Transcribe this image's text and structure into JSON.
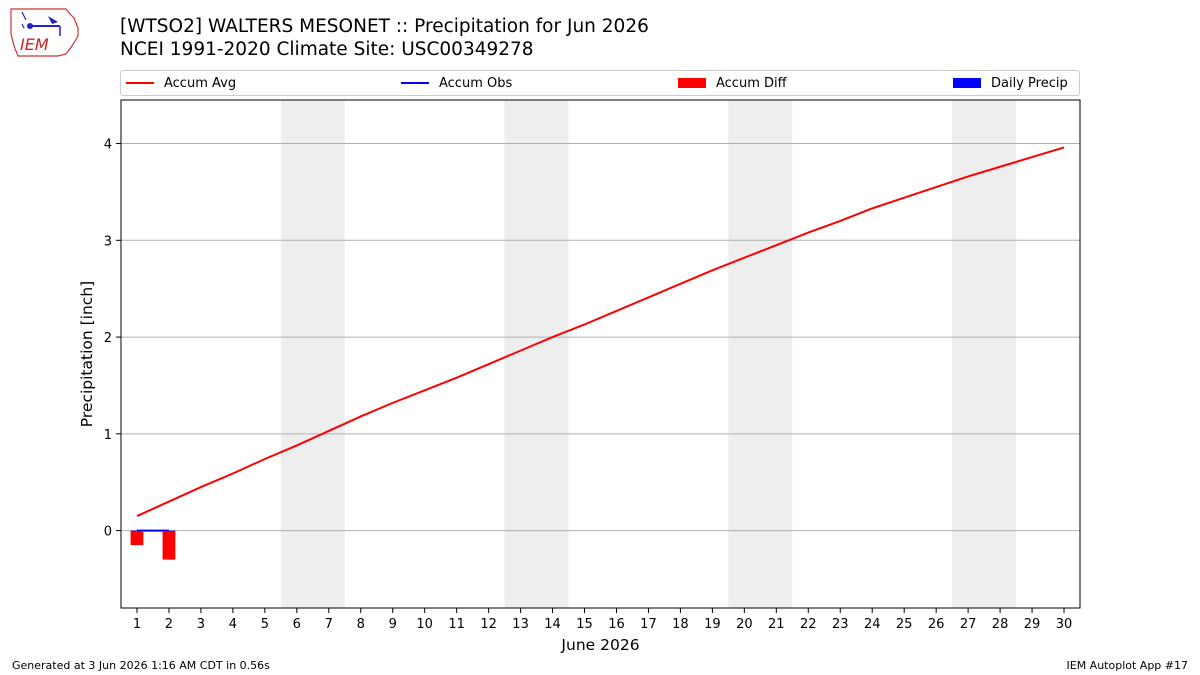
{
  "title_line1": "[WTSO2] WALTERS MESONET :: Precipitation for Jun 2026",
  "title_line2": "NCEI 1991-2020 Climate Site: USC00349278",
  "logo_text": "IEM",
  "footer_left": "Generated at 3 Jun 2026 1:16 AM CDT in 0.56s",
  "footer_right": "IEM Autoplot App #17",
  "colors": {
    "accum_avg": "#ff0000",
    "accum_obs": "#0000ff",
    "accum_diff": "#ff0000",
    "daily_precip": "#0000ff",
    "weekend_shade": "#eeeeee",
    "grid": "#b0b0b0"
  },
  "chart_data": {
    "type": "line",
    "xlabel": "June 2026",
    "ylabel": "Precipitation [inch]",
    "xlim": [
      0.5,
      30.5
    ],
    "ylim": [
      -0.8,
      4.45
    ],
    "yticks": [
      0,
      1,
      2,
      3,
      4
    ],
    "grid": "horizontal",
    "legend_position": "top",
    "legend": [
      "Accum Avg",
      "Accum Obs",
      "Accum Diff",
      "Daily Precip"
    ],
    "x": [
      1,
      2,
      3,
      4,
      5,
      6,
      7,
      8,
      9,
      10,
      11,
      12,
      13,
      14,
      15,
      16,
      17,
      18,
      19,
      20,
      21,
      22,
      23,
      24,
      25,
      26,
      27,
      28,
      29,
      30
    ],
    "weekend_spans": [
      [
        6,
        7
      ],
      [
        13,
        14
      ],
      [
        20,
        21
      ],
      [
        27,
        28
      ]
    ],
    "series": [
      {
        "name": "Accum Avg",
        "kind": "line",
        "values": [
          0.15,
          0.3,
          0.45,
          0.59,
          0.74,
          0.88,
          1.03,
          1.18,
          1.32,
          1.45,
          1.58,
          1.72,
          1.86,
          2.0,
          2.13,
          2.27,
          2.41,
          2.55,
          2.69,
          2.82,
          2.95,
          3.08,
          3.2,
          3.33,
          3.44,
          3.55,
          3.66,
          3.76,
          3.86,
          3.96
        ]
      },
      {
        "name": "Accum Obs",
        "kind": "line",
        "x": [
          1,
          2
        ],
        "values": [
          0.0,
          0.0
        ]
      },
      {
        "name": "Accum Diff",
        "kind": "bar",
        "x": [
          1,
          2
        ],
        "values": [
          -0.15,
          -0.3
        ]
      },
      {
        "name": "Daily Precip",
        "kind": "bar",
        "x": [
          1,
          2
        ],
        "values": [
          0.0,
          0.0
        ]
      }
    ]
  }
}
